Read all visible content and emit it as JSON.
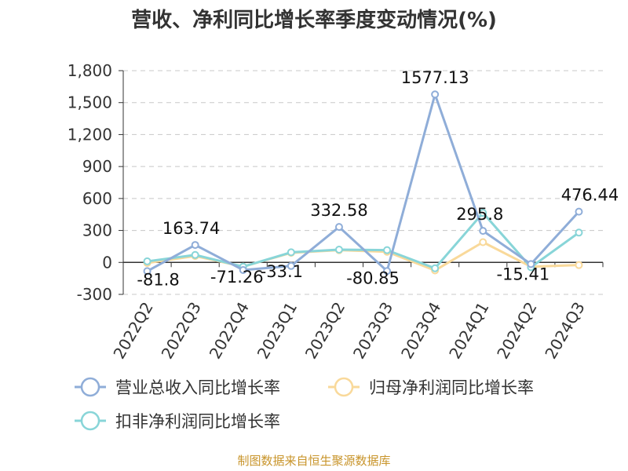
{
  "chart_data": {
    "type": "line",
    "title": "营收、净利同比增长率季度变动情况(%)",
    "categories": [
      "2022Q2",
      "2022Q3",
      "2022Q4",
      "2023Q1",
      "2023Q2",
      "2023Q3",
      "2023Q4",
      "2024Q1",
      "2024Q2",
      "2024Q3"
    ],
    "series": [
      {
        "name": "营业总收入同比增长率",
        "color": "#8fadd8",
        "values": [
          -81.8,
          163.74,
          -71.26,
          -33.1,
          332.58,
          -80.85,
          1577.13,
          295.8,
          -15.41,
          476.44
        ],
        "labels": [
          "-81.8",
          "163.74",
          "-71.26",
          "-33.1",
          "332.58",
          "-80.85",
          "1577.13",
          "295.8",
          "-15.41",
          "476.44"
        ]
      },
      {
        "name": "归母净利润同比增长率",
        "color": "#f9d99a",
        "values": [
          -5,
          60,
          -40,
          90,
          115,
          100,
          -75,
          190,
          -40,
          -25
        ]
      },
      {
        "name": "扣非净利润同比增长率",
        "color": "#88d5d8",
        "values": [
          10,
          70,
          -40,
          95,
          120,
          115,
          -55,
          465,
          -45,
          280
        ]
      }
    ],
    "yticks": [
      "-300",
      "0",
      "300",
      "600",
      "900",
      "1,200",
      "1,500",
      "1,800"
    ],
    "ylim": [
      -300,
      1800
    ],
    "grid": true,
    "legend_position": "bottom"
  },
  "footer": "制图数据来自恒生聚源数据库"
}
